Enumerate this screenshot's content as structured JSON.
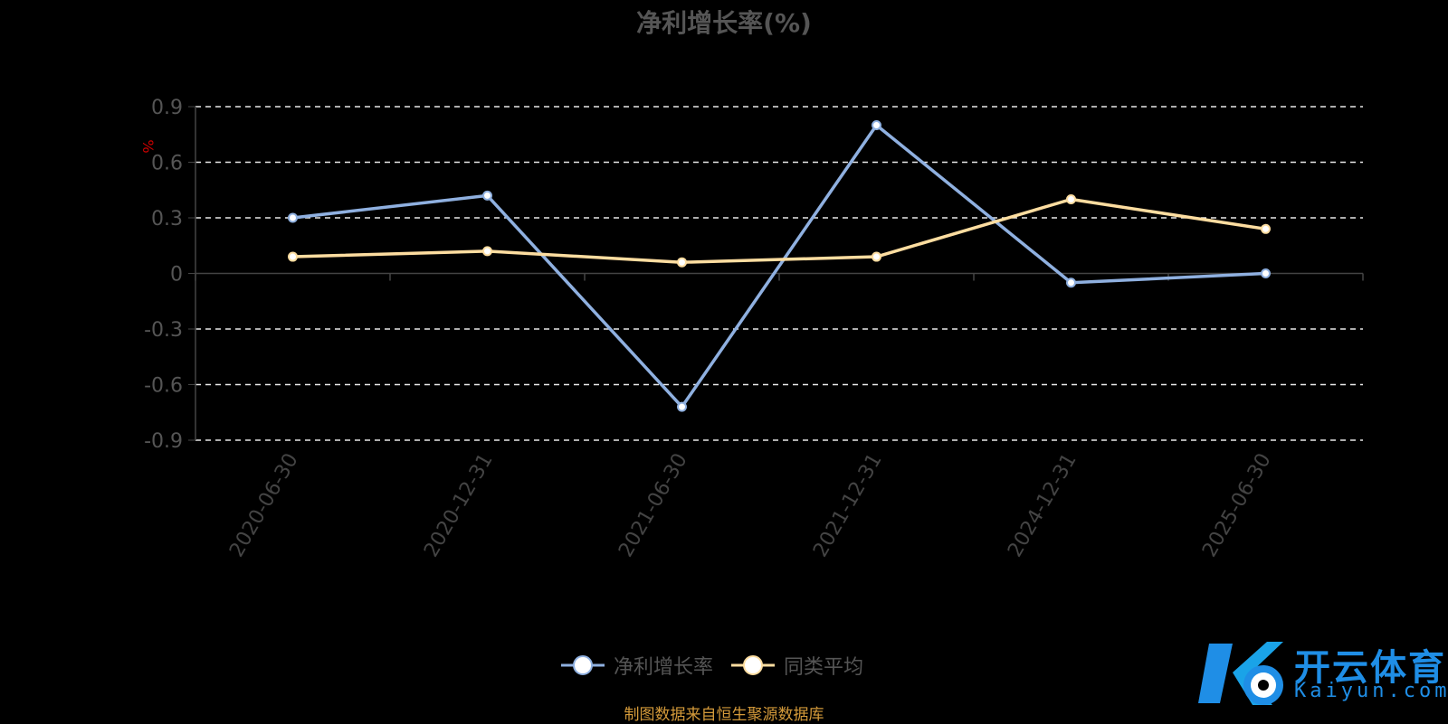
{
  "chart_data": {
    "type": "line",
    "title": "净利增长率(%)",
    "ylabel": "%",
    "ylim": [
      -0.9,
      0.9
    ],
    "yticks": [
      "0.9",
      "0.6",
      "0.3",
      "0",
      "-0.3",
      "-0.6",
      "-0.9"
    ],
    "categories": [
      "2020-06-30",
      "2020-12-31",
      "2021-06-30",
      "2021-12-31",
      "2024-12-31",
      "2025-06-30"
    ],
    "series": [
      {
        "name": "净利增长率",
        "color": "#8fb0e0",
        "values": [
          0.3,
          0.42,
          -0.72,
          0.8,
          -0.05,
          0.0
        ]
      },
      {
        "name": "同类平均",
        "color": "#fddda0",
        "values": [
          0.09,
          0.12,
          0.06,
          0.09,
          0.4,
          0.24
        ]
      }
    ],
    "grid": "dashed-horizontal",
    "legend_position": "bottom-center"
  },
  "footer": {
    "source": "制图数据来自恒生聚源数据库"
  },
  "watermark": {
    "name_cn": "开云体育",
    "domain": "Kaiyun.com"
  }
}
